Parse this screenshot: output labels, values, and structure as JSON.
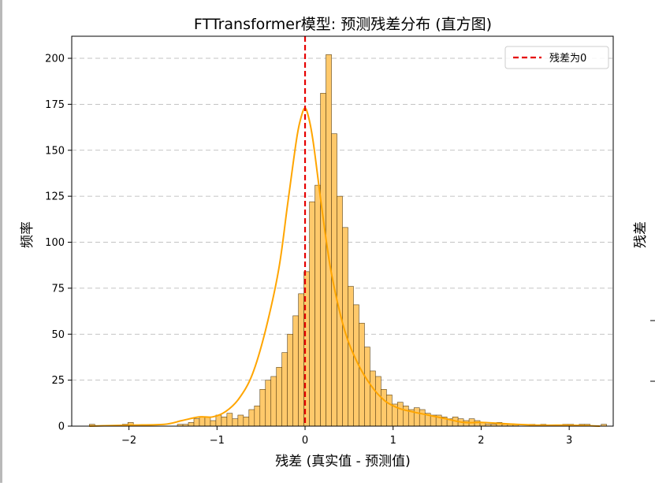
{
  "chart_data": {
    "type": "bar",
    "title": "FTTransformer模型: 预测残差分布 (直方图)",
    "xlabel": "残差 (真实值 - 预测值)",
    "ylabel": "频率",
    "xlim": [
      -2.65,
      3.5
    ],
    "ylim": [
      0,
      212
    ],
    "x_ticks": [
      -2,
      -1,
      0,
      1,
      2,
      3
    ],
    "x_tick_labels": [
      "−2",
      "−1",
      "0",
      "1",
      "2",
      "3"
    ],
    "y_ticks": [
      0,
      25,
      50,
      75,
      100,
      125,
      150,
      175,
      200
    ],
    "y_tick_labels": [
      "0",
      "25",
      "50",
      "75",
      "100",
      "125",
      "150",
      "175",
      "200"
    ],
    "grid": "y-dashed",
    "bin_start": -2.45,
    "bin_width": 0.0625,
    "series": [
      {
        "name": "",
        "values": [
          1,
          0,
          0,
          0,
          0,
          0,
          1,
          2,
          0,
          0,
          0,
          0,
          0,
          0,
          0,
          0,
          1,
          1,
          2,
          4,
          5,
          5,
          3,
          6,
          5,
          7,
          4,
          6,
          5,
          9,
          11,
          20,
          25,
          27,
          32,
          40,
          50,
          60,
          72,
          84,
          122,
          131,
          181,
          202,
          159,
          125,
          108,
          76,
          66,
          56,
          43,
          30,
          27,
          20,
          17,
          12,
          13,
          11,
          9,
          10,
          9,
          7,
          6,
          6,
          5,
          4,
          5,
          4,
          3,
          4,
          3,
          2,
          1,
          1,
          2,
          1,
          1,
          1,
          0,
          0,
          1,
          0,
          1,
          0,
          0,
          0,
          1,
          1,
          0,
          1,
          1,
          0,
          0,
          1
        ]
      }
    ],
    "kde": {
      "x": [
        -2.45,
        -2.0,
        -1.6,
        -1.4,
        -1.2,
        -1.05,
        -0.9,
        -0.75,
        -0.6,
        -0.45,
        -0.3,
        -0.2,
        -0.1,
        -0.05,
        0.0,
        0.05,
        0.1,
        0.2,
        0.3,
        0.45,
        0.6,
        0.75,
        0.9,
        1.05,
        1.2,
        1.4,
        1.6,
        1.8,
        2.0,
        2.2,
        2.4,
        2.7,
        3.0,
        3.35
      ],
      "y": [
        0,
        0.5,
        1,
        3,
        5,
        5,
        8,
        15,
        28,
        52,
        85,
        120,
        155,
        167,
        173,
        166,
        152,
        115,
        83,
        52,
        34,
        22,
        14,
        10,
        8,
        6,
        4,
        2,
        2,
        1.5,
        1,
        0.5,
        0.5,
        0
      ]
    },
    "reference_line": {
      "x": 0,
      "label": "残差为0",
      "color": "#e60000"
    },
    "colors": {
      "bar_fill": "#ffc96b",
      "bar_edge": "#5a4318",
      "kde_line": "#ffa500"
    },
    "legend_position": "top-right"
  },
  "second_panel": {
    "ylabel": "残差"
  }
}
